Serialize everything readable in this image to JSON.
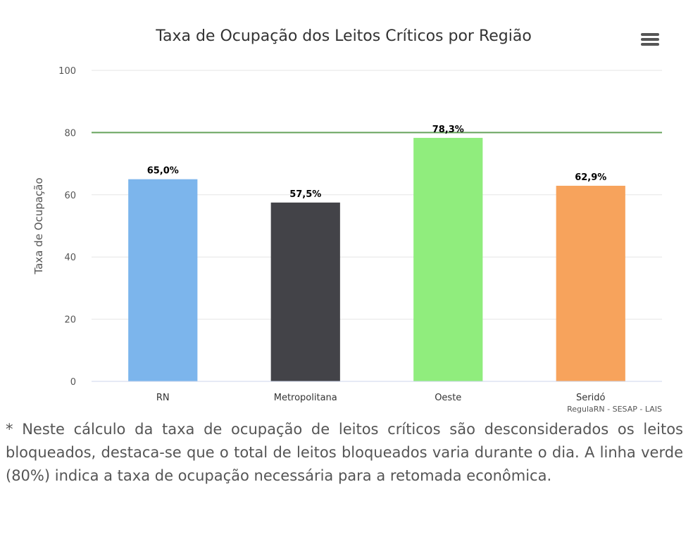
{
  "chart_data": {
    "type": "bar",
    "title": "Taxa de Ocupação dos Leitos Críticos por Região",
    "ylabel": "Taxa de Ocupação",
    "xlabel": "",
    "categories": [
      "RN",
      "Metropolitana",
      "Oeste",
      "Seridó"
    ],
    "values": [
      65.0,
      57.5,
      78.3,
      62.9
    ],
    "data_labels": [
      "65,0%",
      "57,5%",
      "78,3%",
      "62,9%"
    ],
    "bar_colors": [
      "#7cb5ec",
      "#434348",
      "#90ed7d",
      "#f7a35c"
    ],
    "ylim": [
      0,
      100
    ],
    "yticks": [
      0,
      20,
      40,
      60,
      80,
      100
    ],
    "grid": true,
    "legend": "none",
    "reference_line": {
      "value": 80,
      "color": "#66a35c"
    },
    "credits": "RegulaRN - SESAP - LAIS"
  },
  "menu": {
    "icon": "hamburger-menu-icon"
  },
  "footnote": "* Neste cálculo da taxa de ocupação de leitos críticos são desconsiderados os leitos bloqueados, destaca-se que o total de leitos bloqueados varia durante o dia. A linha verde (80%) indica a taxa de ocupação necessária para a retomada econômica."
}
